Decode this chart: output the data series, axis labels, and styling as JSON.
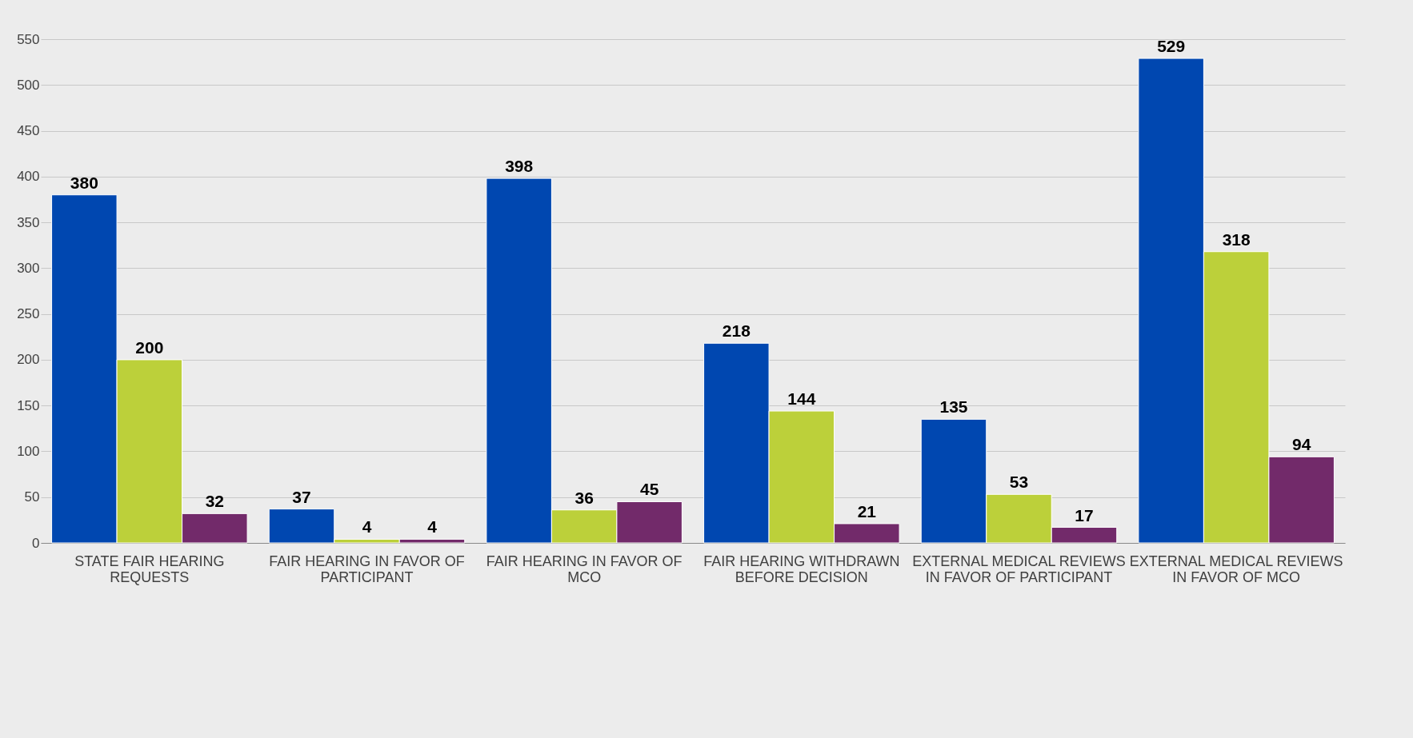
{
  "chart_data": {
    "type": "bar",
    "categories": [
      "STATE FAIR HEARING REQUESTS",
      "FAIR HEARING IN FAVOR OF PARTICIPANT",
      "FAIR HEARING IN FAVOR OF MCO",
      "FAIR HEARING WITHDRAWN BEFORE DECISION",
      "EXTERNAL MEDICAL REVIEWS IN FAVOR OF PARTICIPANT",
      "EXTERNAL MEDICAL REVIEWS IN FAVOR OF MCO"
    ],
    "series": [
      {
        "color": "#0047b0",
        "values": [
          380,
          37,
          398,
          218,
          135,
          529
        ]
      },
      {
        "color": "#bcd03a",
        "values": [
          200,
          4,
          36,
          144,
          53,
          318
        ]
      },
      {
        "color": "#722a6a",
        "values": [
          32,
          4,
          45,
          21,
          17,
          94
        ]
      }
    ],
    "ylim": [
      0,
      550
    ],
    "yticks": [
      0,
      50,
      100,
      150,
      200,
      250,
      300,
      350,
      400,
      450,
      500,
      550
    ],
    "grid": "y",
    "data_labels": true
  }
}
